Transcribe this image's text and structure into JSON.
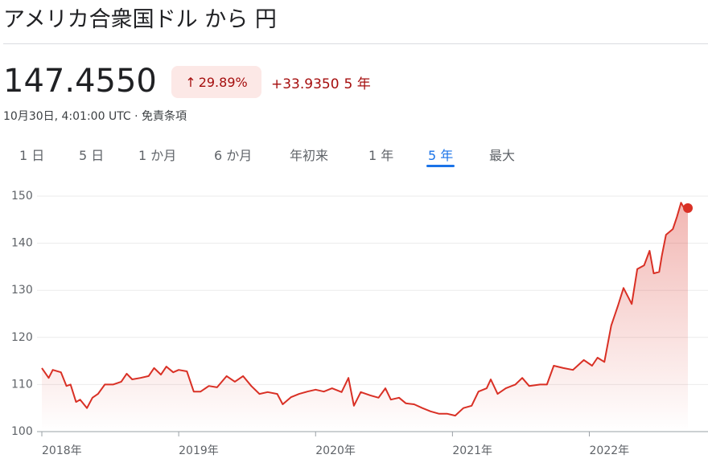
{
  "header": {
    "title": "アメリカ合衆国ドル から 円",
    "price": "147.4550",
    "change_pct": "29.89%",
    "change_abs": "+33.9350",
    "period": "5 年",
    "subtitle": "10月30日, 4:01:00 UTC · 免責条項"
  },
  "tabs": [
    "1 日",
    "5 日",
    "1 か月",
    "6 か月",
    "年初来",
    "1 年",
    "5 年",
    "最大"
  ],
  "active_tab": 6,
  "chart_data": {
    "type": "line",
    "color": "#d93025",
    "grid": true,
    "x": [
      2018.0,
      2018.05,
      2018.08,
      2018.14,
      2018.18,
      2018.21,
      2018.25,
      2018.28,
      2018.33,
      2018.37,
      2018.41,
      2018.46,
      2018.52,
      2018.58,
      2018.62,
      2018.66,
      2018.72,
      2018.78,
      2018.82,
      2018.87,
      2018.91,
      2018.96,
      2019.0,
      2019.06,
      2019.11,
      2019.16,
      2019.22,
      2019.28,
      2019.35,
      2019.41,
      2019.47,
      2019.53,
      2019.59,
      2019.65,
      2019.72,
      2019.76,
      2019.82,
      2019.88,
      2019.94,
      2020.0,
      2020.06,
      2020.12,
      2020.19,
      2020.24,
      2020.28,
      2020.33,
      2020.4,
      2020.46,
      2020.51,
      2020.55,
      2020.61,
      2020.66,
      2020.72,
      2020.78,
      2020.84,
      2020.9,
      2020.96,
      2021.02,
      2021.08,
      2021.14,
      2021.19,
      2021.25,
      2021.28,
      2021.33,
      2021.39,
      2021.46,
      2021.51,
      2021.56,
      2021.64,
      2021.69,
      2021.74,
      2021.81,
      2021.88,
      2021.96,
      2022.02,
      2022.06,
      2022.11,
      2022.16,
      2022.21,
      2022.25,
      2022.31,
      2022.35,
      2022.4,
      2022.44,
      2022.47,
      2022.51,
      2022.53,
      2022.56,
      2022.61,
      2022.64,
      2022.67,
      2022.69,
      2022.72
    ],
    "values": [
      113.5,
      111.4,
      113.1,
      112.6,
      109.7,
      110,
      106.3,
      106.8,
      105,
      107.2,
      108,
      110,
      110,
      110.6,
      112.3,
      111.1,
      111.4,
      111.8,
      113.5,
      112.1,
      113.8,
      112.6,
      113.1,
      112.8,
      108.5,
      108.5,
      109.7,
      109.4,
      111.8,
      110.6,
      111.8,
      109.7,
      108,
      108.4,
      108,
      105.8,
      107.3,
      108,
      108.5,
      108.9,
      108.5,
      109.2,
      108.4,
      111.4,
      105.5,
      108.4,
      107.7,
      107.2,
      109.2,
      106.8,
      107.2,
      106,
      105.8,
      105,
      104.3,
      103.8,
      103.8,
      103.4,
      105,
      105.5,
      108.5,
      109.2,
      111.1,
      108,
      109.2,
      110,
      111.4,
      109.7,
      110,
      110,
      114,
      113.5,
      113.1,
      115.2,
      114,
      115.7,
      114.8,
      122.5,
      126.8,
      130.5,
      127.1,
      134.5,
      135.3,
      138.4,
      133.6,
      133.9,
      137.4,
      141.8,
      143,
      145.6,
      148.6,
      147.6,
      147.455
    ],
    "xlim": [
      2018,
      2022.72
    ],
    "xticks": [
      {
        "value": 2018,
        "label": "2018年"
      },
      {
        "value": 2019,
        "label": "2019年"
      },
      {
        "value": 2020,
        "label": "2020年"
      },
      {
        "value": 2021,
        "label": "2021年"
      },
      {
        "value": 2022,
        "label": "2022年"
      }
    ],
    "ylim": [
      100,
      150
    ],
    "yticks": [
      100,
      110,
      120,
      130,
      140,
      150
    ]
  }
}
